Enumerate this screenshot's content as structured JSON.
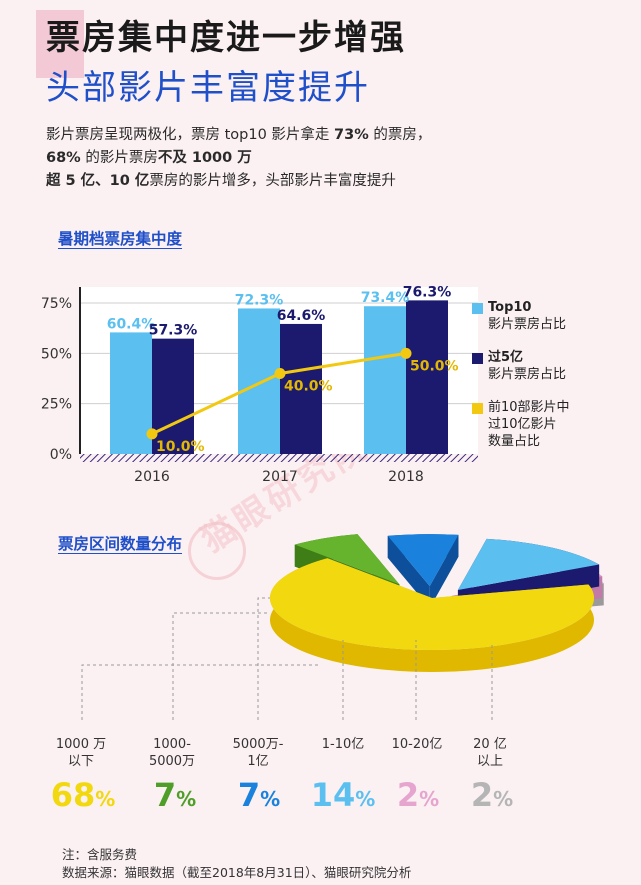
{
  "header": {
    "title_line1": "票房集中度进一步增强",
    "title_line2": "头部影片丰富度提升"
  },
  "intro": {
    "line1_a": "影片票房呈现两极化，票房 top10 影片拿走 ",
    "line1_b": "73%",
    "line1_c": " 的票房，",
    "line2_a": "68%",
    "line2_b": " 的影片票房",
    "line2_c": "不及 1000 万",
    "line3_a": "超 5 亿、10 亿",
    "line3_b": "票房的影片增多，头部影片丰富度提升"
  },
  "watermark": "猫眼研究院",
  "colors": {
    "light_blue": "#5bc0f0",
    "navy": "#1b1a6e",
    "yellow": "#f2c811",
    "label_blue": "#1f4fc9"
  },
  "chart_data": [
    {
      "type": "bar",
      "title": "暑期档票房集中度",
      "categories": [
        "2016",
        "2017",
        "2018"
      ],
      "ylim": [
        0,
        75
      ],
      "yticks": [
        "0%",
        "25%",
        "50%",
        "75%"
      ],
      "series": [
        {
          "name": "Top10 影片票房占比",
          "legend": [
            "Top10",
            "影片票房占比"
          ],
          "type": "bar",
          "values": [
            60.4,
            72.3,
            73.4
          ],
          "labels": [
            "60.4%",
            "72.3%",
            "73.4%"
          ],
          "color": "#5bc0f0"
        },
        {
          "name": "过5亿 影片票房占比",
          "legend": [
            "过5亿",
            "影片票房占比"
          ],
          "type": "bar",
          "values": [
            57.3,
            64.6,
            76.3
          ],
          "labels": [
            "57.3%",
            "64.6%",
            "76.3%"
          ],
          "color": "#1b1a6e"
        },
        {
          "name": "前10部影片中过10亿影片数量占比",
          "legend": [
            "前10部影片中",
            "过10亿影片",
            "数量占比"
          ],
          "type": "line",
          "values": [
            10.0,
            40.0,
            50.0
          ],
          "labels": [
            "10.0%",
            "40.0%",
            "50.0%"
          ],
          "color": "#f2c811"
        }
      ],
      "grid": true,
      "legend_position": "right"
    },
    {
      "type": "pie",
      "title": "票房区间数量分布",
      "slices": [
        {
          "label": [
            "1000 万",
            "以下"
          ],
          "value": 68,
          "display": "68",
          "color": "#f2d80f",
          "side": "#e0b800"
        },
        {
          "label": [
            "1000-",
            "5000万"
          ],
          "value": 7,
          "display": "7",
          "color": "#66b32e",
          "side": "#3f7d17"
        },
        {
          "label": [
            "5000万-",
            "1亿"
          ],
          "value": 7,
          "display": "7",
          "color": "#1a82dd",
          "side": "#0d4f9a"
        },
        {
          "label": [
            "1-10亿"
          ],
          "value": 14,
          "display": "14",
          "color": "#5bc0f0",
          "side": "#1b1a6e"
        },
        {
          "label": [
            "10-20亿"
          ],
          "value": 2,
          "display": "2",
          "color": "#e6a5cf",
          "side": "#c27aa9"
        },
        {
          "label": [
            "20 亿",
            "以上"
          ],
          "value": 2,
          "display": "2",
          "color": "#c9c9c9",
          "side": "#9a9a9a"
        }
      ],
      "pct_symbol": "%",
      "pct_colors": [
        "#f2d80f",
        "#4f9e2a",
        "#1a82dd",
        "#5bc0f0",
        "#e6a5cf",
        "#b5b5b5"
      ]
    }
  ],
  "footnotes": {
    "note": "注：含服务费",
    "source": "数据来源：猫眼数据（截至2018年8月31日）、猫眼研究院分析"
  }
}
